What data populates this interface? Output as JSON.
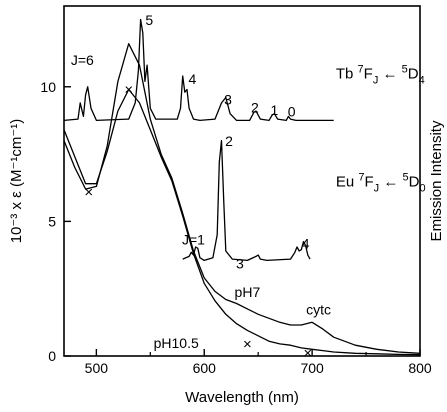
{
  "chart_data": {
    "type": "line",
    "xlabel": "Wavelength (nm)",
    "ylabel": "10⁻³ x ε (M⁻¹cm⁻¹)",
    "y2label": "Emission Intensity",
    "xlim": [
      470,
      800
    ],
    "ylim": [
      0,
      13
    ],
    "x_ticks": [
      500,
      600,
      700,
      800
    ],
    "y_ticks": [
      0,
      5,
      10
    ],
    "grid": false,
    "series": [
      {
        "name": "pH7",
        "kind": "absorption",
        "x": [
          470,
          480,
          490,
          500,
          510,
          520,
          530,
          540,
          550,
          560,
          570,
          580,
          590,
          600,
          610,
          620,
          630,
          640,
          650,
          660,
          670,
          680,
          690,
          700,
          710,
          720,
          740,
          760,
          780,
          800
        ],
        "y": [
          8.0,
          7.0,
          6.2,
          6.3,
          7.8,
          10.2,
          11.6,
          10.8,
          8.8,
          7.5,
          6.6,
          5.3,
          3.9,
          2.9,
          2.4,
          2.1,
          1.95,
          1.75,
          1.55,
          1.4,
          1.25,
          1.15,
          1.15,
          1.25,
          1.0,
          0.7,
          0.4,
          0.25,
          0.15,
          0.1
        ]
      },
      {
        "name": "pH10.5",
        "kind": "absorption",
        "x": [
          470,
          480,
          490,
          500,
          510,
          520,
          530,
          540,
          550,
          560,
          570,
          580,
          590,
          600,
          610,
          620,
          630,
          640,
          650,
          660,
          670,
          680,
          690,
          700,
          710,
          720,
          740,
          760,
          780,
          800
        ],
        "y": [
          8.4,
          7.4,
          6.4,
          6.4,
          7.6,
          9.1,
          9.9,
          9.4,
          8.4,
          7.4,
          6.5,
          5.2,
          3.8,
          2.7,
          2.05,
          1.55,
          1.2,
          0.95,
          0.75,
          0.55,
          0.45,
          0.4,
          0.3,
          0.25,
          0.2,
          0.15,
          0.1,
          0.08,
          0.06,
          0.05
        ]
      },
      {
        "name": "Tb",
        "kind": "emission",
        "x": [
          470,
          483,
          485,
          488,
          490,
          492,
          495,
          500,
          530,
          536,
          539,
          541,
          543,
          545,
          547,
          550,
          555,
          575,
          578,
          580,
          582,
          584,
          586,
          590,
          596,
          610,
          616,
          620,
          624,
          630,
          642,
          646,
          648,
          652,
          660,
          663,
          665,
          668,
          676,
          678,
          680,
          685,
          720
        ],
        "y": [
          8.75,
          8.8,
          9.4,
          8.9,
          9.7,
          10.0,
          9.2,
          8.75,
          8.8,
          9.4,
          10.6,
          12.5,
          12.0,
          10.2,
          10.8,
          9.2,
          8.8,
          8.8,
          9.2,
          10.4,
          9.8,
          9.9,
          9.2,
          8.8,
          8.75,
          8.8,
          9.4,
          9.6,
          9.0,
          8.75,
          8.75,
          9.05,
          9.1,
          8.8,
          8.75,
          8.95,
          9.0,
          8.8,
          8.75,
          8.9,
          8.8,
          8.75,
          8.75
        ]
      },
      {
        "name": "Eu",
        "kind": "emission",
        "x": [
          580,
          586,
          588,
          590,
          592,
          594,
          596,
          600,
          608,
          612,
          614,
          616,
          618,
          620,
          626,
          640,
          648,
          650,
          652,
          658,
          680,
          684,
          686,
          688,
          690,
          692,
          694,
          696,
          698
        ],
        "y": [
          3.6,
          3.7,
          3.85,
          3.75,
          4.05,
          4.0,
          3.65,
          3.55,
          3.65,
          4.5,
          7.2,
          8.0,
          5.8,
          3.9,
          3.6,
          3.55,
          3.7,
          3.75,
          3.6,
          3.55,
          3.6,
          3.85,
          4.05,
          3.9,
          3.95,
          4.25,
          4.1,
          3.75,
          3.6
        ]
      }
    ],
    "markers": [
      {
        "symbol": "×",
        "x": 530,
        "y": 9.9
      },
      {
        "symbol": "×",
        "x": 493,
        "y": 6.1
      },
      {
        "symbol": "×",
        "x": 640,
        "y": 0.45
      },
      {
        "symbol": "×",
        "x": 696,
        "y": 0.12
      }
    ],
    "annotations": [
      {
        "text": "J=6",
        "x": 487,
        "y": 10.8
      },
      {
        "text": "5",
        "x": 549,
        "y": 12.3
      },
      {
        "text": "4",
        "x": 589,
        "y": 10.1
      },
      {
        "text": "3",
        "x": 622,
        "y": 9.35
      },
      {
        "text": "2",
        "x": 647,
        "y": 9.05
      },
      {
        "text": "1",
        "x": 665,
        "y": 8.95
      },
      {
        "text": "0",
        "x": 681,
        "y": 8.9
      },
      {
        "text": "2",
        "x": 623,
        "y": 7.8
      },
      {
        "text": "J=1",
        "x": 590,
        "y": 4.15
      },
      {
        "text": "3",
        "x": 633,
        "y": 3.25
      },
      {
        "text": "4",
        "x": 694,
        "y": 4.0
      },
      {
        "text": "pH7",
        "x": 640,
        "y": 2.2
      },
      {
        "text": "cytc",
        "x": 706,
        "y": 1.55
      },
      {
        "text": "pH10.5",
        "x": 574,
        "y": 0.3
      }
    ],
    "transition_labels": [
      {
        "element": "Tb",
        "lower": "F",
        "lower_sup": "7",
        "lower_sub": "J",
        "arrow": "←",
        "upper": "D",
        "upper_sup": "5",
        "upper_sub": "4",
        "x": 722,
        "y": 10.3
      },
      {
        "element": "Eu",
        "lower": "F",
        "lower_sup": "7",
        "lower_sub": "J",
        "arrow": "←",
        "upper": "D",
        "upper_sup": "5",
        "upper_sub": "0",
        "x": 722,
        "y": 6.3
      }
    ]
  }
}
